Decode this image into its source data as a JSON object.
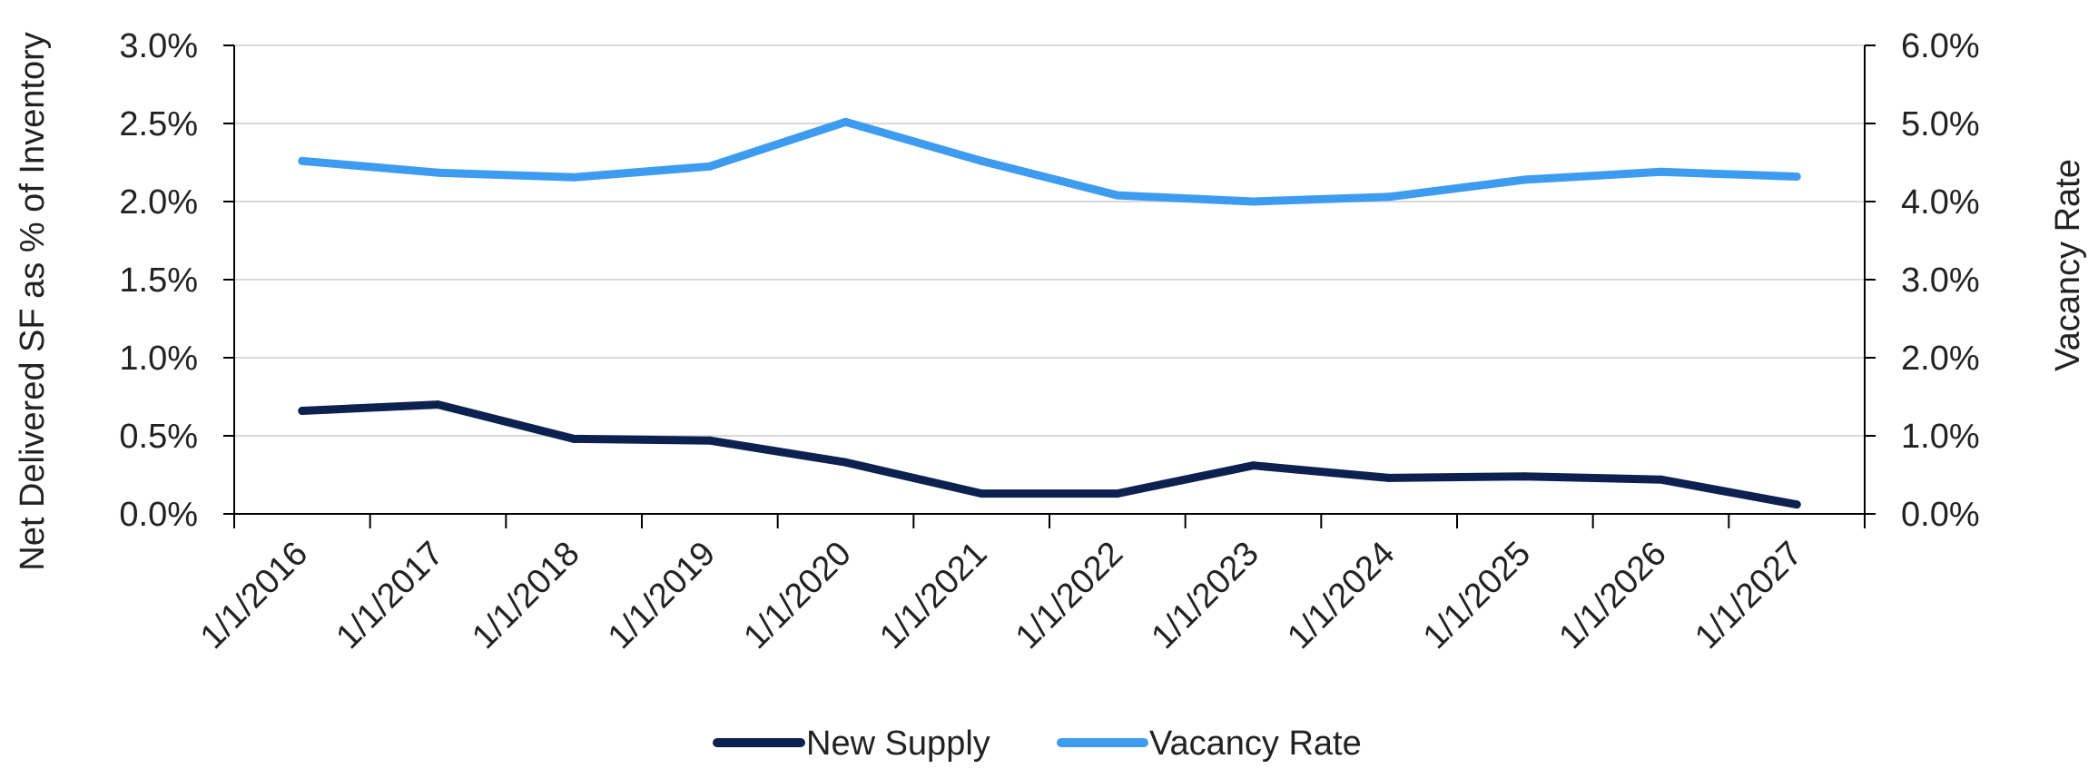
{
  "chart_data": {
    "type": "line",
    "x": [
      "1/1/2016",
      "1/1/2017",
      "1/1/2018",
      "1/1/2019",
      "1/1/2020",
      "1/1/2021",
      "1/1/2022",
      "1/1/2023",
      "1/1/2024",
      "1/1/2025",
      "1/1/2026",
      "1/1/2027"
    ],
    "series": [
      {
        "name": "New Supply",
        "axis": "left",
        "color": "#0d2150",
        "values": [
          0.0066,
          0.007,
          0.0048,
          0.0047,
          0.0033,
          0.0013,
          0.0013,
          0.0031,
          0.0023,
          0.0024,
          0.0022,
          0.0006
        ]
      },
      {
        "name": "Vacancy Rate",
        "axis": "right",
        "color": "#3d9bf0",
        "values": [
          0.0452,
          0.0437,
          0.0431,
          0.0445,
          0.0502,
          0.0452,
          0.0408,
          0.04,
          0.0406,
          0.0428,
          0.0438,
          0.0432
        ]
      }
    ],
    "ylabel": "Net Delivered SF as % of Inventory",
    "y2label": "Vacancy Rate",
    "ylim": [
      0,
      0.03
    ],
    "y2lim": [
      0,
      0.06
    ],
    "yticks": [
      "0.0%",
      "0.5%",
      "1.0%",
      "1.5%",
      "2.0%",
      "2.5%",
      "3.0%"
    ],
    "y2ticks": [
      "0.0%",
      "1.0%",
      "2.0%",
      "3.0%",
      "4.0%",
      "5.0%",
      "6.0%"
    ],
    "grid": true,
    "legend_position": "bottom"
  }
}
